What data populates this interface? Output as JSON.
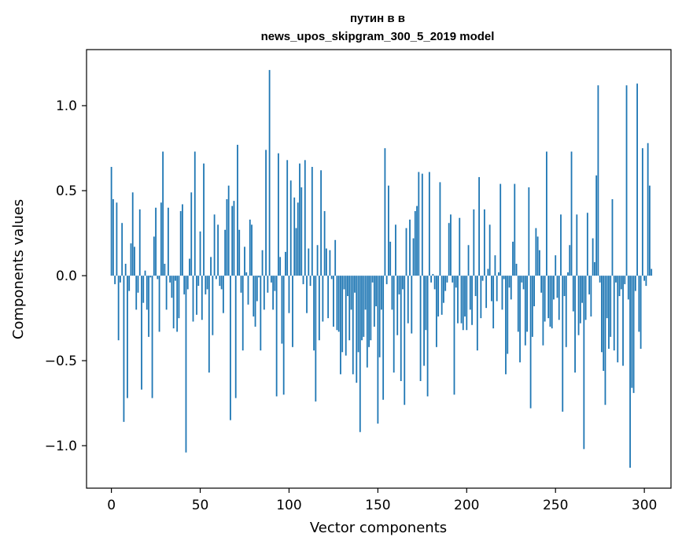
{
  "chart_data": {
    "type": "bar",
    "title": "путин в в",
    "subtitle": "news_upos_skipgram_300_5_2019 model",
    "xlabel": "Vector components",
    "ylabel": "Components values",
    "xlim": [
      -14,
      315
    ],
    "ylim": [
      -1.25,
      1.33
    ],
    "xticks": [
      0,
      50,
      100,
      150,
      200,
      250,
      300
    ],
    "xtick_labels": [
      "0",
      "50",
      "100",
      "150",
      "200",
      "250",
      "300"
    ],
    "yticks": [
      -1.0,
      -0.5,
      0.0,
      0.5,
      1.0
    ],
    "ytick_labels": [
      "−1.0",
      "−0.5",
      "0.0",
      "0.5",
      "1.0"
    ],
    "grid": false,
    "bar_color": "#1f77b4",
    "values": [
      0.64,
      0.45,
      -0.05,
      0.43,
      -0.38,
      -0.04,
      0.31,
      -0.86,
      0.07,
      -0.72,
      -0.09,
      0.19,
      0.49,
      0.17,
      -0.2,
      -0.1,
      0.39,
      -0.67,
      -0.16,
      0.03,
      -0.2,
      -0.36,
      -0.01,
      -0.72,
      0.23,
      0.4,
      -0.02,
      -0.33,
      0.43,
      0.73,
      0.07,
      -0.2,
      0.4,
      -0.04,
      -0.13,
      -0.31,
      -0.03,
      -0.33,
      -0.25,
      0.38,
      0.42,
      -0.11,
      -1.04,
      -0.08,
      0.1,
      0.49,
      -0.27,
      0.73,
      -0.23,
      -0.06,
      0.26,
      -0.26,
      0.66,
      -0.11,
      -0.08,
      -0.57,
      0.11,
      -0.35,
      0.36,
      -0.02,
      0.3,
      -0.06,
      -0.08,
      -0.22,
      0.27,
      0.45,
      0.53,
      -0.85,
      0.41,
      0.44,
      -0.72,
      0.77,
      0.27,
      -0.1,
      -0.44,
      0.17,
      0.02,
      -0.17,
      0.33,
      0.3,
      -0.24,
      -0.3,
      -0.15,
      -0.01,
      -0.44,
      0.15,
      -0.2,
      0.74,
      -0.1,
      1.21,
      -0.04,
      -0.2,
      -0.09,
      -0.71,
      0.72,
      0.11,
      -0.4,
      -0.7,
      0.14,
      0.68,
      -0.22,
      0.56,
      -0.42,
      0.46,
      0.28,
      0.43,
      0.66,
      0.52,
      -0.05,
      0.68,
      -0.22,
      0.16,
      -0.06,
      0.64,
      -0.44,
      -0.74,
      0.18,
      -0.38,
      0.62,
      -0.27,
      0.38,
      0.16,
      -0.25,
      0.15,
      -0.02,
      -0.3,
      0.21,
      -0.32,
      -0.33,
      -0.58,
      -0.45,
      -0.08,
      -0.47,
      -0.12,
      -0.38,
      -0.2,
      -0.58,
      -0.1,
      -0.63,
      -0.45,
      -0.92,
      -0.38,
      -0.36,
      -0.2,
      -0.54,
      -0.42,
      -0.38,
      -0.04,
      -0.3,
      -0.18,
      -0.87,
      -0.48,
      -0.2,
      -0.73,
      0.75,
      -0.05,
      0.53,
      0.2,
      -0.2,
      -0.57,
      0.3,
      -0.35,
      -0.11,
      -0.62,
      -0.08,
      -0.76,
      0.28,
      -0.28,
      0.33,
      -0.34,
      0.22,
      0.38,
      0.41,
      0.61,
      -0.62,
      0.6,
      -0.53,
      -0.32,
      -0.71,
      0.61,
      -0.04,
      0.01,
      -0.08,
      -0.42,
      -0.24,
      0.55,
      -0.23,
      -0.16,
      -0.09,
      -0.04,
      0.31,
      0.36,
      -0.04,
      -0.7,
      -0.07,
      -0.28,
      0.34,
      -0.28,
      -0.32,
      -0.24,
      -0.32,
      0.18,
      -0.2,
      -0.29,
      0.39,
      -0.12,
      -0.44,
      0.58,
      -0.25,
      -0.03,
      0.39,
      -0.19,
      0.04,
      0.3,
      -0.15,
      -0.31,
      0.12,
      -0.15,
      0.02,
      0.54,
      -0.2,
      -0.02,
      -0.58,
      -0.46,
      -0.07,
      -0.14,
      0.2,
      0.54,
      0.07,
      -0.33,
      -0.51,
      -0.04,
      -0.08,
      -0.41,
      -0.33,
      0.52,
      -0.78,
      -0.36,
      -0.18,
      0.28,
      0.23,
      0.15,
      -0.1,
      -0.41,
      -0.27,
      0.73,
      -0.25,
      -0.3,
      -0.31,
      -0.14,
      0.12,
      -0.13,
      -0.26,
      0.36,
      -0.8,
      -0.12,
      -0.42,
      0.02,
      0.18,
      0.73,
      -0.21,
      -0.57,
      0.36,
      -0.35,
      -0.28,
      -0.16,
      -1.02,
      -0.26,
      0.37,
      -0.11,
      -0.24,
      0.22,
      0.08,
      0.59,
      1.12,
      -0.04,
      -0.45,
      -0.56,
      -0.76,
      -0.25,
      -0.43,
      -0.36,
      0.45,
      -0.44,
      -0.04,
      -0.51,
      -0.12,
      -0.08,
      -0.53,
      -0.05,
      1.12,
      -0.14,
      -1.13,
      -0.66,
      -0.69,
      -0.09,
      1.13,
      -0.33,
      -0.43,
      0.75,
      -0.03,
      -0.06,
      0.78,
      0.53,
      0.04
    ]
  }
}
